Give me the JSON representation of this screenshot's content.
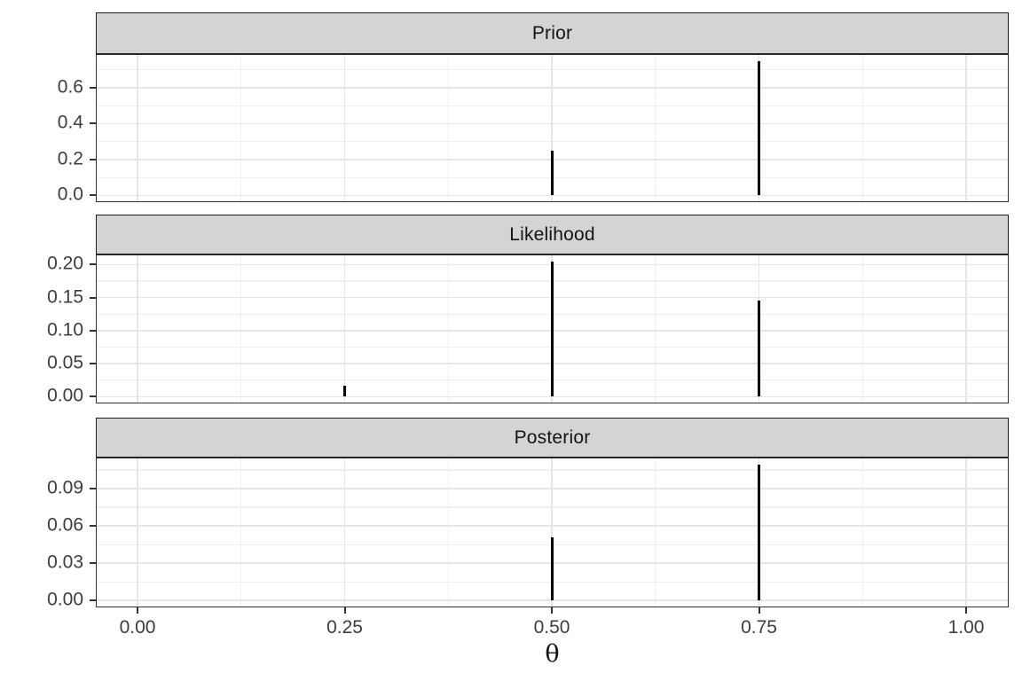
{
  "colors": {
    "background": "#ffffff",
    "spike": "#000000",
    "strip_background": "#d4d4d4",
    "strip_border": "#1c1c1c",
    "panel_border": "#333333",
    "grid_major": "#e6e6e6",
    "grid_minor": "#efefef",
    "axis_text": "#3d3d3d",
    "tick_mark": "#333333"
  },
  "chart_data": {
    "type": "bar",
    "subtype": "vertical-spike-segments",
    "title": "",
    "xlabel": "θ",
    "ylabel": "",
    "grid": "on",
    "legend": "none",
    "facets": [
      {
        "label": "Prior",
        "y_ticks": [
          0,
          0.2,
          0.4,
          0.6
        ],
        "y_tick_labels": [
          "0.0",
          "0.2",
          "0.4",
          "0.6"
        ],
        "y_minor_gridlines": [
          0.1,
          0.3,
          0.5,
          0.7
        ],
        "ylim": [
          -0.0375,
          0.7875
        ],
        "points": [
          {
            "theta": 0.5,
            "value": 0.25
          },
          {
            "theta": 0.75,
            "value": 0.75
          }
        ]
      },
      {
        "label": "Likelihood",
        "y_ticks": [
          0,
          0.05,
          0.1,
          0.15,
          0.2
        ],
        "y_tick_labels": [
          "0.00",
          "0.05",
          "0.10",
          "0.15",
          "0.20"
        ],
        "y_minor_gridlines": [
          0.025,
          0.075,
          0.125,
          0.175
        ],
        "ylim": [
          -0.0103,
          0.2153
        ],
        "points": [
          {
            "theta": 0.25,
            "value": 0.016
          },
          {
            "theta": 0.5,
            "value": 0.205
          },
          {
            "theta": 0.75,
            "value": 0.146
          }
        ]
      },
      {
        "label": "Posterior",
        "y_ticks": [
          0,
          0.03,
          0.06,
          0.09
        ],
        "y_tick_labels": [
          "0.00",
          "0.03",
          "0.06",
          "0.09"
        ],
        "y_minor_gridlines": [
          0.015,
          0.045,
          0.075,
          0.105
        ],
        "ylim": [
          -0.0055,
          0.115
        ],
        "points": [
          {
            "theta": 0.5,
            "value": 0.051
          },
          {
            "theta": 0.75,
            "value": 0.109
          }
        ]
      }
    ],
    "x": {
      "label": "θ",
      "ticks": [
        0,
        0.25,
        0.5,
        0.75,
        1
      ],
      "tick_labels": [
        "0.00",
        "0.25",
        "0.50",
        "0.75",
        "1.00"
      ],
      "minor_gridlines": [
        0.125,
        0.375,
        0.625,
        0.875
      ],
      "xlim": [
        -0.0503,
        1.0514
      ]
    }
  }
}
